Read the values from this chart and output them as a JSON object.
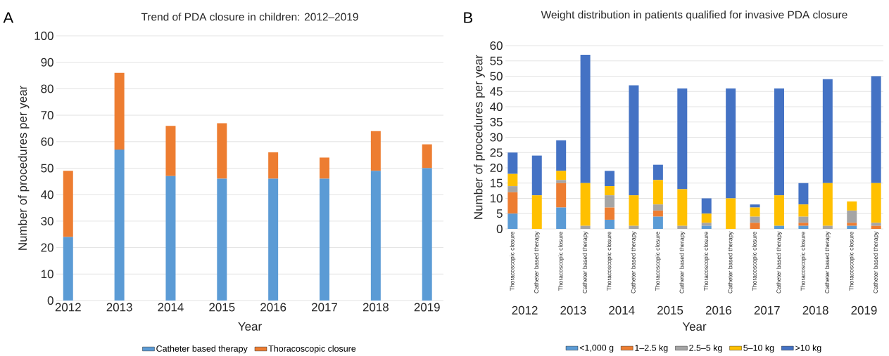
{
  "chart_data": [
    {
      "type": "bar",
      "title": "Trend of PDA closure in children: 2012–2019",
      "xlabel": "Year",
      "ylabel": "Number of procedures per year",
      "annotations": [
        "A"
      ],
      "categories": [
        "2012",
        "2013",
        "2014",
        "2015",
        "2016",
        "2017",
        "2018",
        "2019"
      ],
      "series": [
        {
          "name": "Catheter based therapy",
          "color": "#5b9bd5",
          "values": [
            24,
            57,
            47,
            46,
            46,
            46,
            49,
            50
          ]
        },
        {
          "name": "Thoracoscopic closure",
          "color": "#ed7d31",
          "values": [
            25,
            29,
            19,
            21,
            10,
            8,
            15,
            9
          ]
        }
      ],
      "stacked": true,
      "ylim": [
        0,
        100
      ],
      "yticks": [
        0,
        10,
        20,
        30,
        40,
        50,
        60,
        70,
        80,
        90,
        100
      ],
      "grid": "y",
      "legend": "bottom"
    },
    {
      "type": "bar",
      "title": "Weight distribution in patients qualified for invasive PDA closure",
      "xlabel": "Year",
      "ylabel": "Number of procedures per year",
      "annotations": [
        "B",
        "2012",
        "2013",
        "2014",
        "2015",
        "2016",
        "2017",
        "2018",
        "2019"
      ],
      "categories": [
        "Thoracoscopic closure",
        "Catheter based therapy",
        "Thoracoscopic closure",
        "Catheter based therapy",
        "Thoracoscopic closure",
        "Catheter based therapy",
        "Thoracoscopic closure",
        "Catheter based therapy",
        "Thoracoscopic closure",
        "Catheter based therapy",
        "Thoracoscopic closure",
        "Catheter based therapy",
        "Thoracoscopic closure",
        "Catheter based therapy",
        "Thoracoscopic closure",
        "Catheter based therapy"
      ],
      "series": [
        {
          "name": "<1,000 g",
          "color": "#5b9bd5",
          "values": [
            5,
            0,
            7,
            0,
            3,
            0,
            4,
            0,
            1,
            0,
            0,
            1,
            1,
            0,
            1,
            0
          ]
        },
        {
          "name": "1–2.5 kg",
          "color": "#ed7d31",
          "values": [
            7,
            0,
            8,
            0,
            4,
            0,
            2,
            0,
            0,
            0,
            2,
            0,
            1,
            0,
            1,
            1
          ]
        },
        {
          "name": "2.5–5 kg",
          "color": "#a5a5a5",
          "values": [
            2,
            0,
            1,
            1,
            4,
            1,
            2,
            1,
            1,
            0,
            2,
            0,
            2,
            1,
            4,
            1
          ]
        },
        {
          "name": "5–10 kg",
          "color": "#ffc000",
          "values": [
            4,
            11,
            3,
            14,
            3,
            10,
            8,
            12,
            3,
            10,
            3,
            10,
            4,
            14,
            3,
            13
          ]
        },
        {
          "name": ">10 kg",
          "color": "#4472c4",
          "values": [
            7,
            13,
            10,
            42,
            5,
            36,
            5,
            33,
            5,
            36,
            1,
            35,
            7,
            34,
            0,
            35
          ]
        }
      ],
      "stacked": true,
      "ylim": [
        0,
        60
      ],
      "yticks": [
        0,
        5,
        10,
        15,
        20,
        25,
        30,
        35,
        40,
        45,
        50,
        55,
        60
      ],
      "grid": "y",
      "legend": "bottom"
    }
  ]
}
